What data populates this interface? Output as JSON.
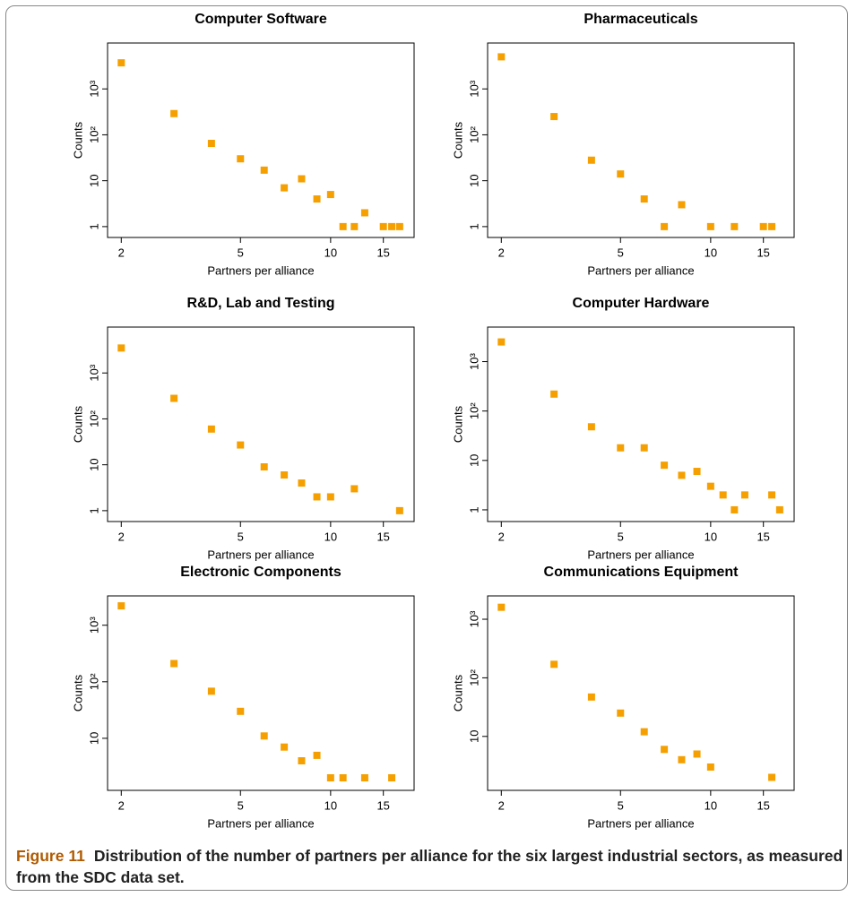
{
  "chart_data": [
    {
      "type": "scatter",
      "title": "Computer Software",
      "x_label": "Partners per alliance",
      "y_label": "Counts",
      "log_x": true,
      "log_y": true,
      "color": "#f5a000",
      "x": [
        2,
        3,
        4,
        5,
        6,
        7,
        8,
        9,
        10,
        11,
        12,
        13,
        15,
        16,
        17
      ],
      "values": [
        3700,
        290,
        65,
        30,
        17,
        7,
        11,
        4,
        5,
        1,
        1,
        2,
        1,
        1,
        1
      ],
      "xlim": [
        1.8,
        19
      ],
      "ylim": [
        0.58,
        10000
      ],
      "xticks": [
        2,
        5,
        10,
        15
      ],
      "yticks": [
        1,
        10,
        {
          "value": 100,
          "label": "10²"
        },
        {
          "value": 1000,
          "label": "10³"
        }
      ]
    },
    {
      "type": "scatter",
      "title": "Pharmaceuticals",
      "x_label": "Partners per alliance",
      "y_label": "Counts",
      "log_x": true,
      "log_y": true,
      "color": "#f5a000",
      "x": [
        2,
        3,
        4,
        5,
        6,
        7,
        8,
        10,
        12,
        15,
        16
      ],
      "values": [
        5000,
        250,
        28,
        14,
        4,
        1,
        3,
        1,
        1,
        1,
        1
      ],
      "xlim": [
        1.8,
        19
      ],
      "ylim": [
        0.58,
        10000
      ],
      "xticks": [
        2,
        5,
        10,
        15
      ],
      "yticks": [
        1,
        10,
        {
          "value": 100,
          "label": "10²"
        },
        {
          "value": 1000,
          "label": "10³"
        }
      ]
    },
    {
      "type": "scatter",
      "title": "R&D, Lab and Testing",
      "x_label": "Partners per alliance",
      "y_label": "Counts",
      "log_x": true,
      "log_y": true,
      "color": "#f5a000",
      "x": [
        2,
        3,
        4,
        5,
        6,
        7,
        8,
        9,
        10,
        12,
        17
      ],
      "values": [
        3500,
        280,
        60,
        27,
        9,
        6,
        4,
        2,
        2,
        3,
        1
      ],
      "xlim": [
        1.8,
        19
      ],
      "ylim": [
        0.58,
        10000
      ],
      "xticks": [
        2,
        5,
        10,
        15
      ],
      "yticks": [
        1,
        10,
        {
          "value": 100,
          "label": "10²"
        },
        {
          "value": 1000,
          "label": "10³"
        }
      ]
    },
    {
      "type": "scatter",
      "title": "Computer Hardware",
      "x_label": "Partners per alliance",
      "y_label": "Counts",
      "log_x": true,
      "log_y": true,
      "color": "#f5a000",
      "x": [
        2,
        3,
        4,
        5,
        6,
        7,
        8,
        9,
        10,
        11,
        12,
        13,
        16,
        17
      ],
      "values": [
        2500,
        220,
        48,
        18,
        18,
        8,
        5,
        6,
        3,
        2,
        1,
        2,
        2,
        1
      ],
      "xlim": [
        1.8,
        19
      ],
      "ylim": [
        0.58,
        5000
      ],
      "xticks": [
        2,
        5,
        10,
        15
      ],
      "yticks": [
        1,
        10,
        {
          "value": 100,
          "label": "10²"
        },
        {
          "value": 1000,
          "label": "10³"
        }
      ]
    },
    {
      "type": "scatter",
      "title": "Electronic Components",
      "x_label": "Partners per alliance",
      "y_label": "Counts",
      "log_x": true,
      "log_y": true,
      "color": "#f5a000",
      "x": [
        2,
        3,
        4,
        5,
        6,
        7,
        8,
        9,
        10,
        11,
        13,
        16
      ],
      "values": [
        2200,
        210,
        68,
        30,
        11,
        7,
        4,
        5,
        2,
        2,
        2,
        2
      ],
      "xlim": [
        1.8,
        19
      ],
      "ylim": [
        1.2,
        3300
      ],
      "xticks": [
        2,
        5,
        10,
        15
      ],
      "yticks": [
        10,
        {
          "value": 100,
          "label": "10²"
        },
        {
          "value": 1000,
          "label": "10³"
        }
      ]
    },
    {
      "type": "scatter",
      "title": "Communications Equipment",
      "x_label": "Partners per alliance",
      "y_label": "Counts",
      "log_x": true,
      "log_y": true,
      "color": "#f5a000",
      "x": [
        2,
        3,
        4,
        5,
        6,
        7,
        8,
        9,
        10,
        16
      ],
      "values": [
        1600,
        170,
        47,
        25,
        12,
        6,
        4,
        5,
        3,
        2
      ],
      "xlim": [
        1.8,
        19
      ],
      "ylim": [
        1.2,
        2500
      ],
      "xticks": [
        2,
        5,
        10,
        15
      ],
      "yticks": [
        10,
        {
          "value": 100,
          "label": "10²"
        },
        {
          "value": 1000,
          "label": "10³"
        }
      ]
    }
  ],
  "caption_label": "Figure 11",
  "caption_text": "Distribution of the number of partners per alliance for the six largest industrial sectors, as measured from the SDC data set."
}
